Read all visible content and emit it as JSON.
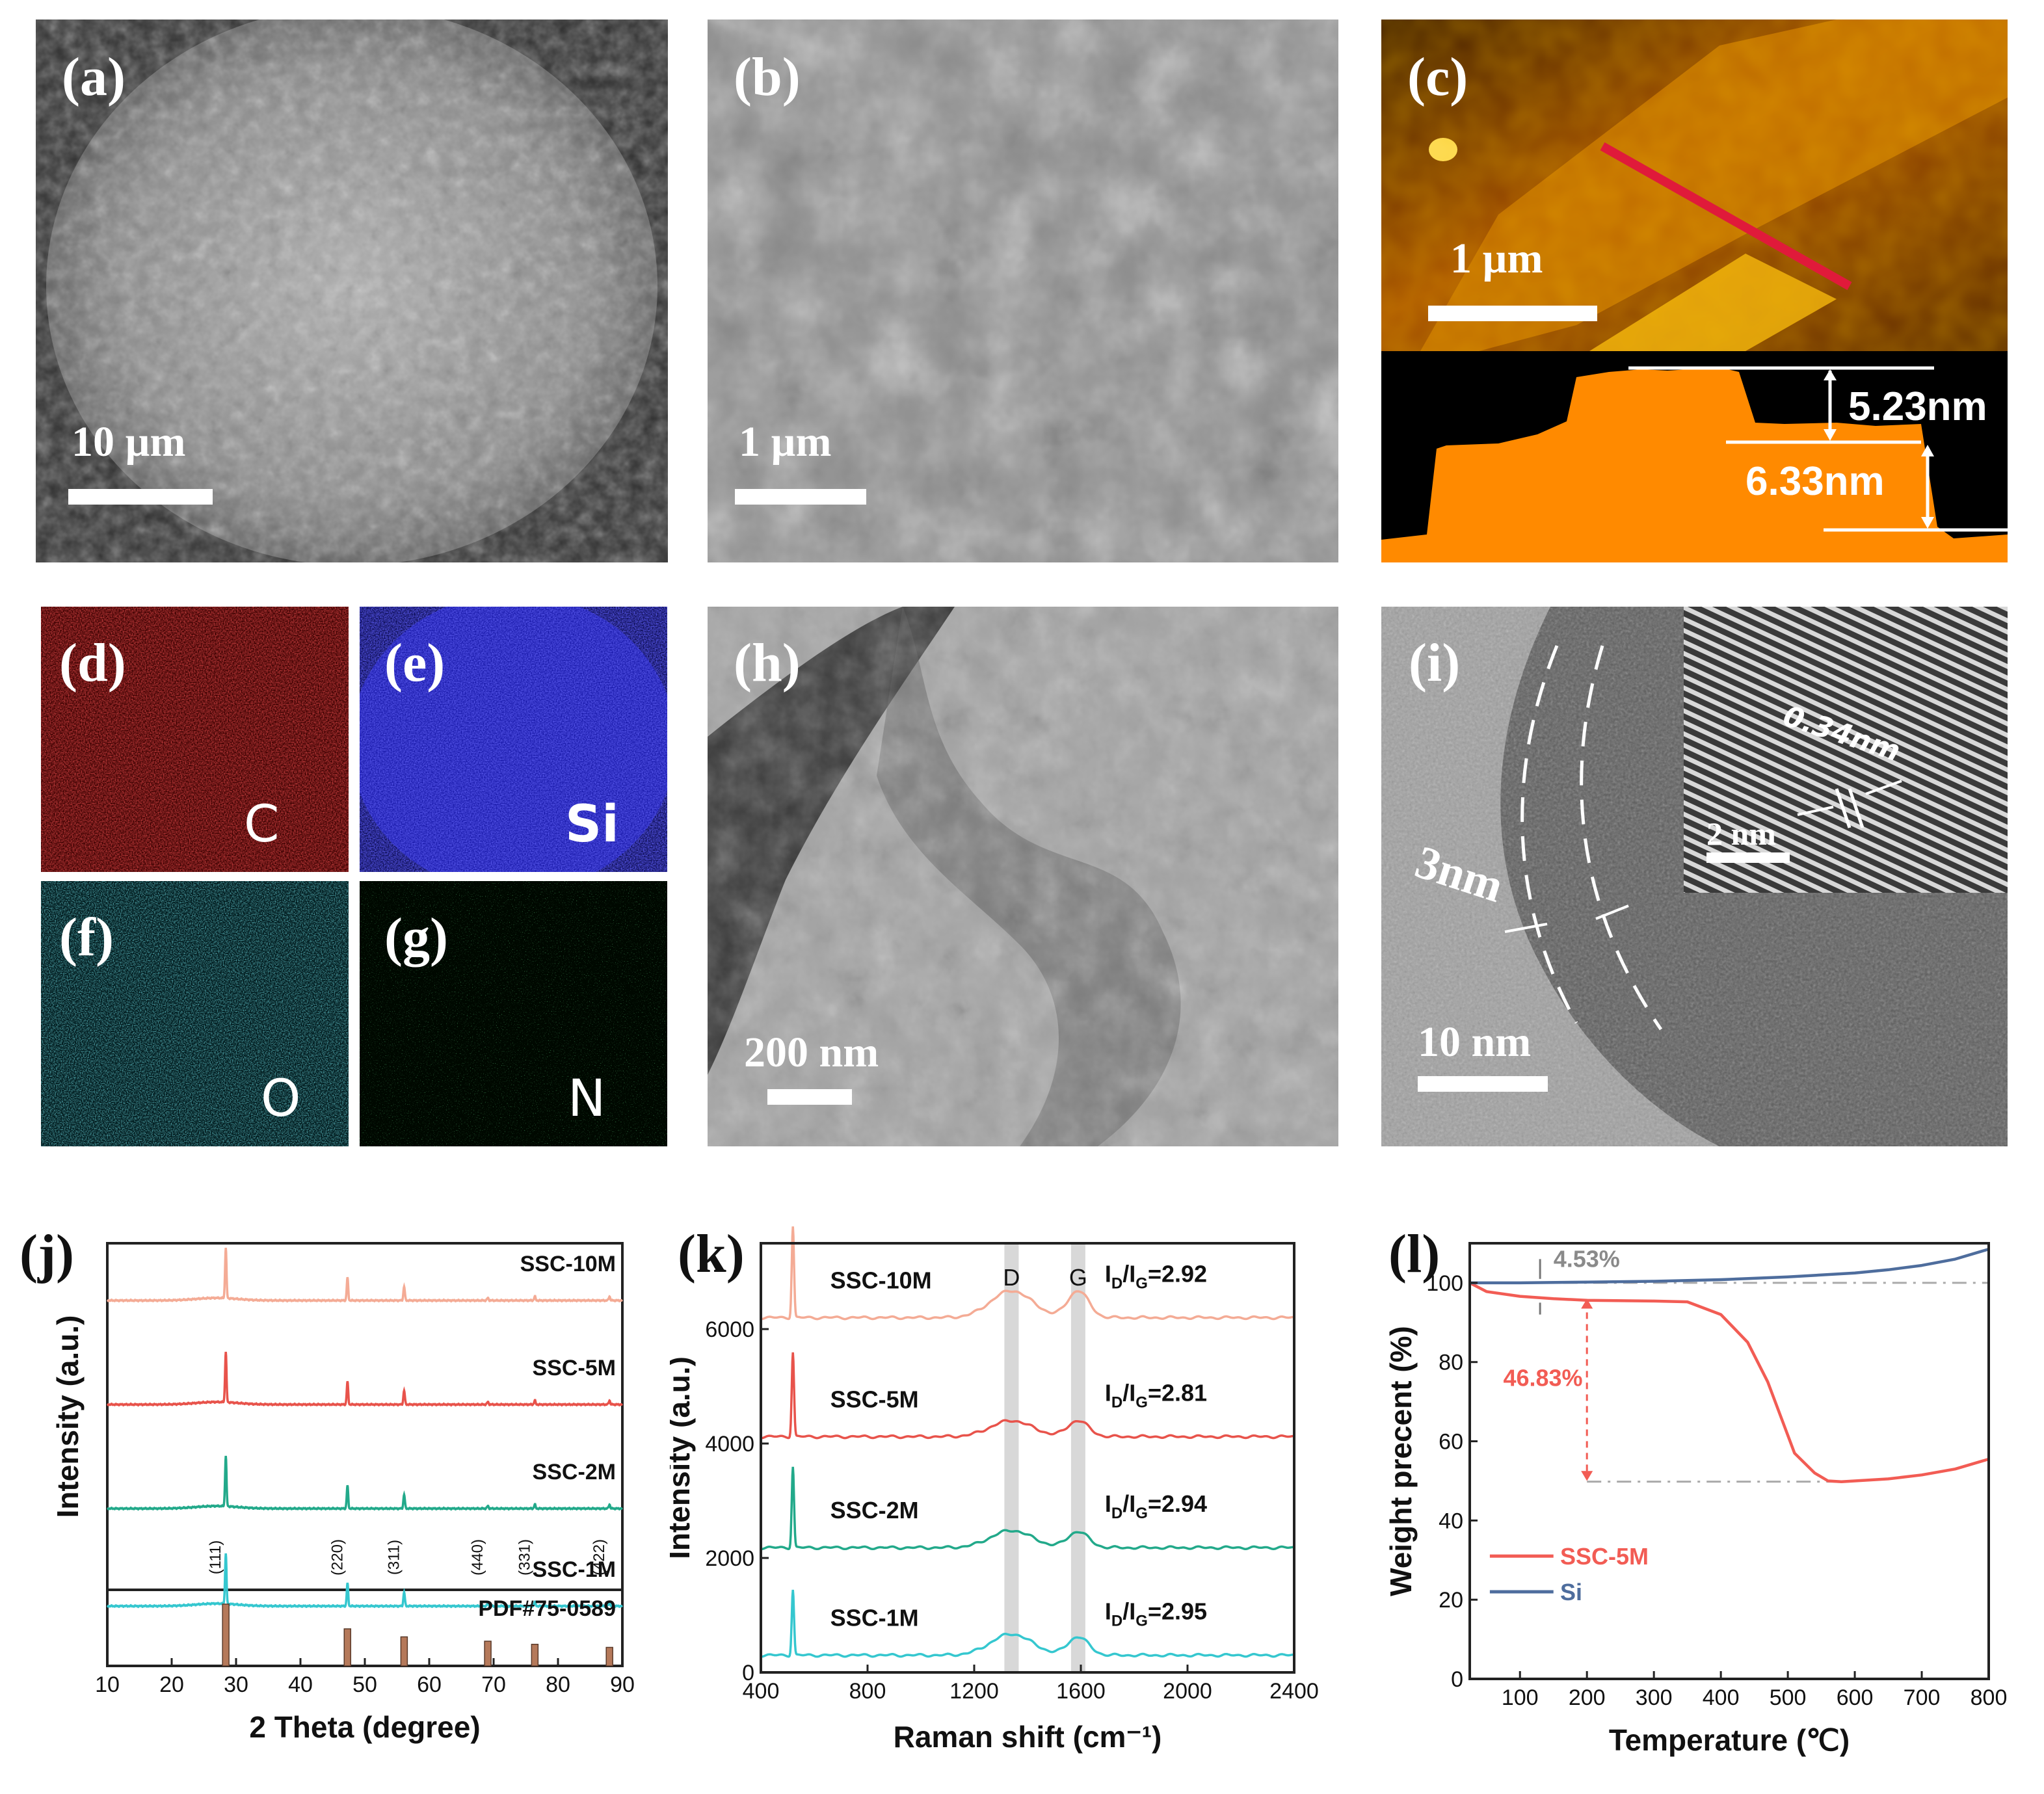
{
  "colors": {
    "xrd_1M": "#35c7cf",
    "xrd_2M": "#22a98a",
    "xrd_5M": "#e8534b",
    "xrd_10M": "#f4ab95",
    "reference_bar": "#b5795a",
    "tga_ssc": "#f25c54",
    "tga_si": "#4e6d9d",
    "eds_C": "#d31818",
    "eds_Si": "#1c1ccc",
    "eds_O": "#27a0a8",
    "eds_N": "#1f9a34"
  },
  "panels": {
    "a": {
      "label": "(a)",
      "scale": "10 µm"
    },
    "b": {
      "label": "(b)",
      "scale": "1 µm"
    },
    "c": {
      "label": "(c)",
      "scale": "1 µm",
      "height1": "5.23nm",
      "height2": "6.33nm"
    },
    "d": {
      "label": "(d)",
      "element": "C"
    },
    "e": {
      "label": "(e)",
      "element": "Si"
    },
    "f": {
      "label": "(f)",
      "element": "O"
    },
    "g": {
      "label": "(g)",
      "element": "N"
    },
    "h": {
      "label": "(h)",
      "scale": "200 nm"
    },
    "i": {
      "label": "(i)",
      "scale": "10 nm",
      "inset_scale": "2 nm",
      "lattice": "0.34nm",
      "layer": "3nm"
    }
  },
  "xrd": {
    "label": "(j)",
    "chart_data": {
      "type": "line",
      "xlabel": "2 Theta (degree)",
      "ylabel": "Intensity (a.u.)",
      "xlim": [
        10,
        90
      ],
      "xticks": [
        10,
        20,
        30,
        40,
        50,
        60,
        70,
        80,
        90
      ],
      "series": [
        {
          "name": "SSC-10M",
          "peaks": [
            [
              28.4,
              1.0
            ],
            [
              47.3,
              0.45
            ],
            [
              56.1,
              0.28
            ],
            [
              69.1,
              0.05
            ],
            [
              76.4,
              0.08
            ],
            [
              88.0,
              0.08
            ]
          ]
        },
        {
          "name": "SSC-5M",
          "peaks": [
            [
              28.4,
              1.0
            ],
            [
              47.3,
              0.45
            ],
            [
              56.1,
              0.28
            ],
            [
              69.1,
              0.05
            ],
            [
              76.4,
              0.08
            ],
            [
              88.0,
              0.08
            ]
          ]
        },
        {
          "name": "SSC-2M",
          "peaks": [
            [
              28.4,
              1.0
            ],
            [
              47.3,
              0.45
            ],
            [
              56.1,
              0.28
            ],
            [
              69.1,
              0.05
            ],
            [
              76.4,
              0.08
            ],
            [
              88.0,
              0.08
            ]
          ]
        },
        {
          "name": "SSC-1M",
          "peaks": [
            [
              28.4,
              1.0
            ],
            [
              47.3,
              0.45
            ],
            [
              56.1,
              0.28
            ],
            [
              69.1,
              0.05
            ],
            [
              76.4,
              0.08
            ],
            [
              88.0,
              0.08
            ]
          ]
        }
      ],
      "hkl": [
        {
          "text": "(111)",
          "x": 28.4
        },
        {
          "text": "(220)",
          "x": 47.3
        },
        {
          "text": "(311)",
          "x": 56.1
        },
        {
          "text": "(440)",
          "x": 69.1
        },
        {
          "text": "(331)",
          "x": 76.4
        },
        {
          "text": "(422)",
          "x": 88.0
        }
      ],
      "reference": {
        "name": "PDF#75-0589",
        "bars": [
          [
            28.4,
            1.0
          ],
          [
            47.3,
            0.6
          ],
          [
            56.1,
            0.47
          ],
          [
            69.1,
            0.4
          ],
          [
            76.4,
            0.35
          ],
          [
            88.0,
            0.3
          ]
        ]
      }
    }
  },
  "raman": {
    "label": "(k)",
    "chart_data": {
      "type": "line",
      "xlabel": "Raman shift (cm⁻¹)",
      "ylabel": "Intensity (a.u.)",
      "xlim": [
        400,
        2400
      ],
      "ylim": [
        0,
        7500
      ],
      "xticks": [
        400,
        800,
        1200,
        1600,
        2000,
        2400
      ],
      "yticks": [
        0,
        2000,
        4000,
        6000
      ],
      "bands": [
        {
          "name": "D",
          "x": 1340
        },
        {
          "name": "G",
          "x": 1590
        }
      ],
      "series": [
        {
          "name": "SSC-10M",
          "ratio_label": "I",
          "ratio_sub1": "D",
          "ratio_slash": "/I",
          "ratio_sub2": "G",
          "ratio_value": "=2.92",
          "baseline": 6200,
          "si_peak": 1600,
          "d_band": 470,
          "g_band": 470
        },
        {
          "name": "SSC-5M",
          "ratio_label": "I",
          "ratio_sub1": "D",
          "ratio_slash": "/I",
          "ratio_sub2": "G",
          "ratio_value": "=2.81",
          "baseline": 4120,
          "si_peak": 1480,
          "d_band": 280,
          "g_band": 280
        },
        {
          "name": "SSC-2M",
          "ratio_label": "I",
          "ratio_sub1": "D",
          "ratio_slash": "/I",
          "ratio_sub2": "G",
          "ratio_value": "=2.94",
          "baseline": 2180,
          "si_peak": 1420,
          "d_band": 300,
          "g_band": 280
        },
        {
          "name": "SSC-1M",
          "ratio_label": "I",
          "ratio_sub1": "D",
          "ratio_slash": "/I",
          "ratio_sub2": "G",
          "ratio_value": "=2.95",
          "baseline": 300,
          "si_peak": 1150,
          "d_band": 370,
          "g_band": 320
        }
      ]
    }
  },
  "tga": {
    "label": "(l)",
    "chart_data": {
      "type": "line",
      "xlabel": "Temperature (℃)",
      "ylabel": "Weight precent (%)",
      "xlim": [
        25,
        800
      ],
      "ylim": [
        0,
        110
      ],
      "xticks": [
        100,
        200,
        300,
        400,
        500,
        600,
        700,
        800
      ],
      "yticks": [
        0,
        20,
        40,
        60,
        80,
        100
      ],
      "series": [
        {
          "name": "SSC-5M",
          "x": [
            25,
            50,
            100,
            150,
            200,
            300,
            350,
            400,
            440,
            470,
            490,
            510,
            540,
            560,
            580,
            600,
            650,
            700,
            750,
            800
          ],
          "y": [
            100,
            97.8,
            96.6,
            96.0,
            95.6,
            95.4,
            95.2,
            92.0,
            85.0,
            75.0,
            66.0,
            57.0,
            52.0,
            50.0,
            49.8,
            50.0,
            50.5,
            51.5,
            53.0,
            55.5
          ]
        },
        {
          "name": "Si",
          "x": [
            25,
            100,
            200,
            300,
            400,
            500,
            600,
            650,
            700,
            750,
            800
          ],
          "y": [
            100,
            100,
            100.2,
            100.4,
            100.8,
            101.5,
            102.5,
            103.3,
            104.4,
            106.0,
            108.5
          ]
        }
      ],
      "annotations": [
        {
          "text": "4.53%",
          "x": 150,
          "y": 104
        },
        {
          "text": "46.83%",
          "x": 75,
          "y": 74
        }
      ]
    }
  }
}
